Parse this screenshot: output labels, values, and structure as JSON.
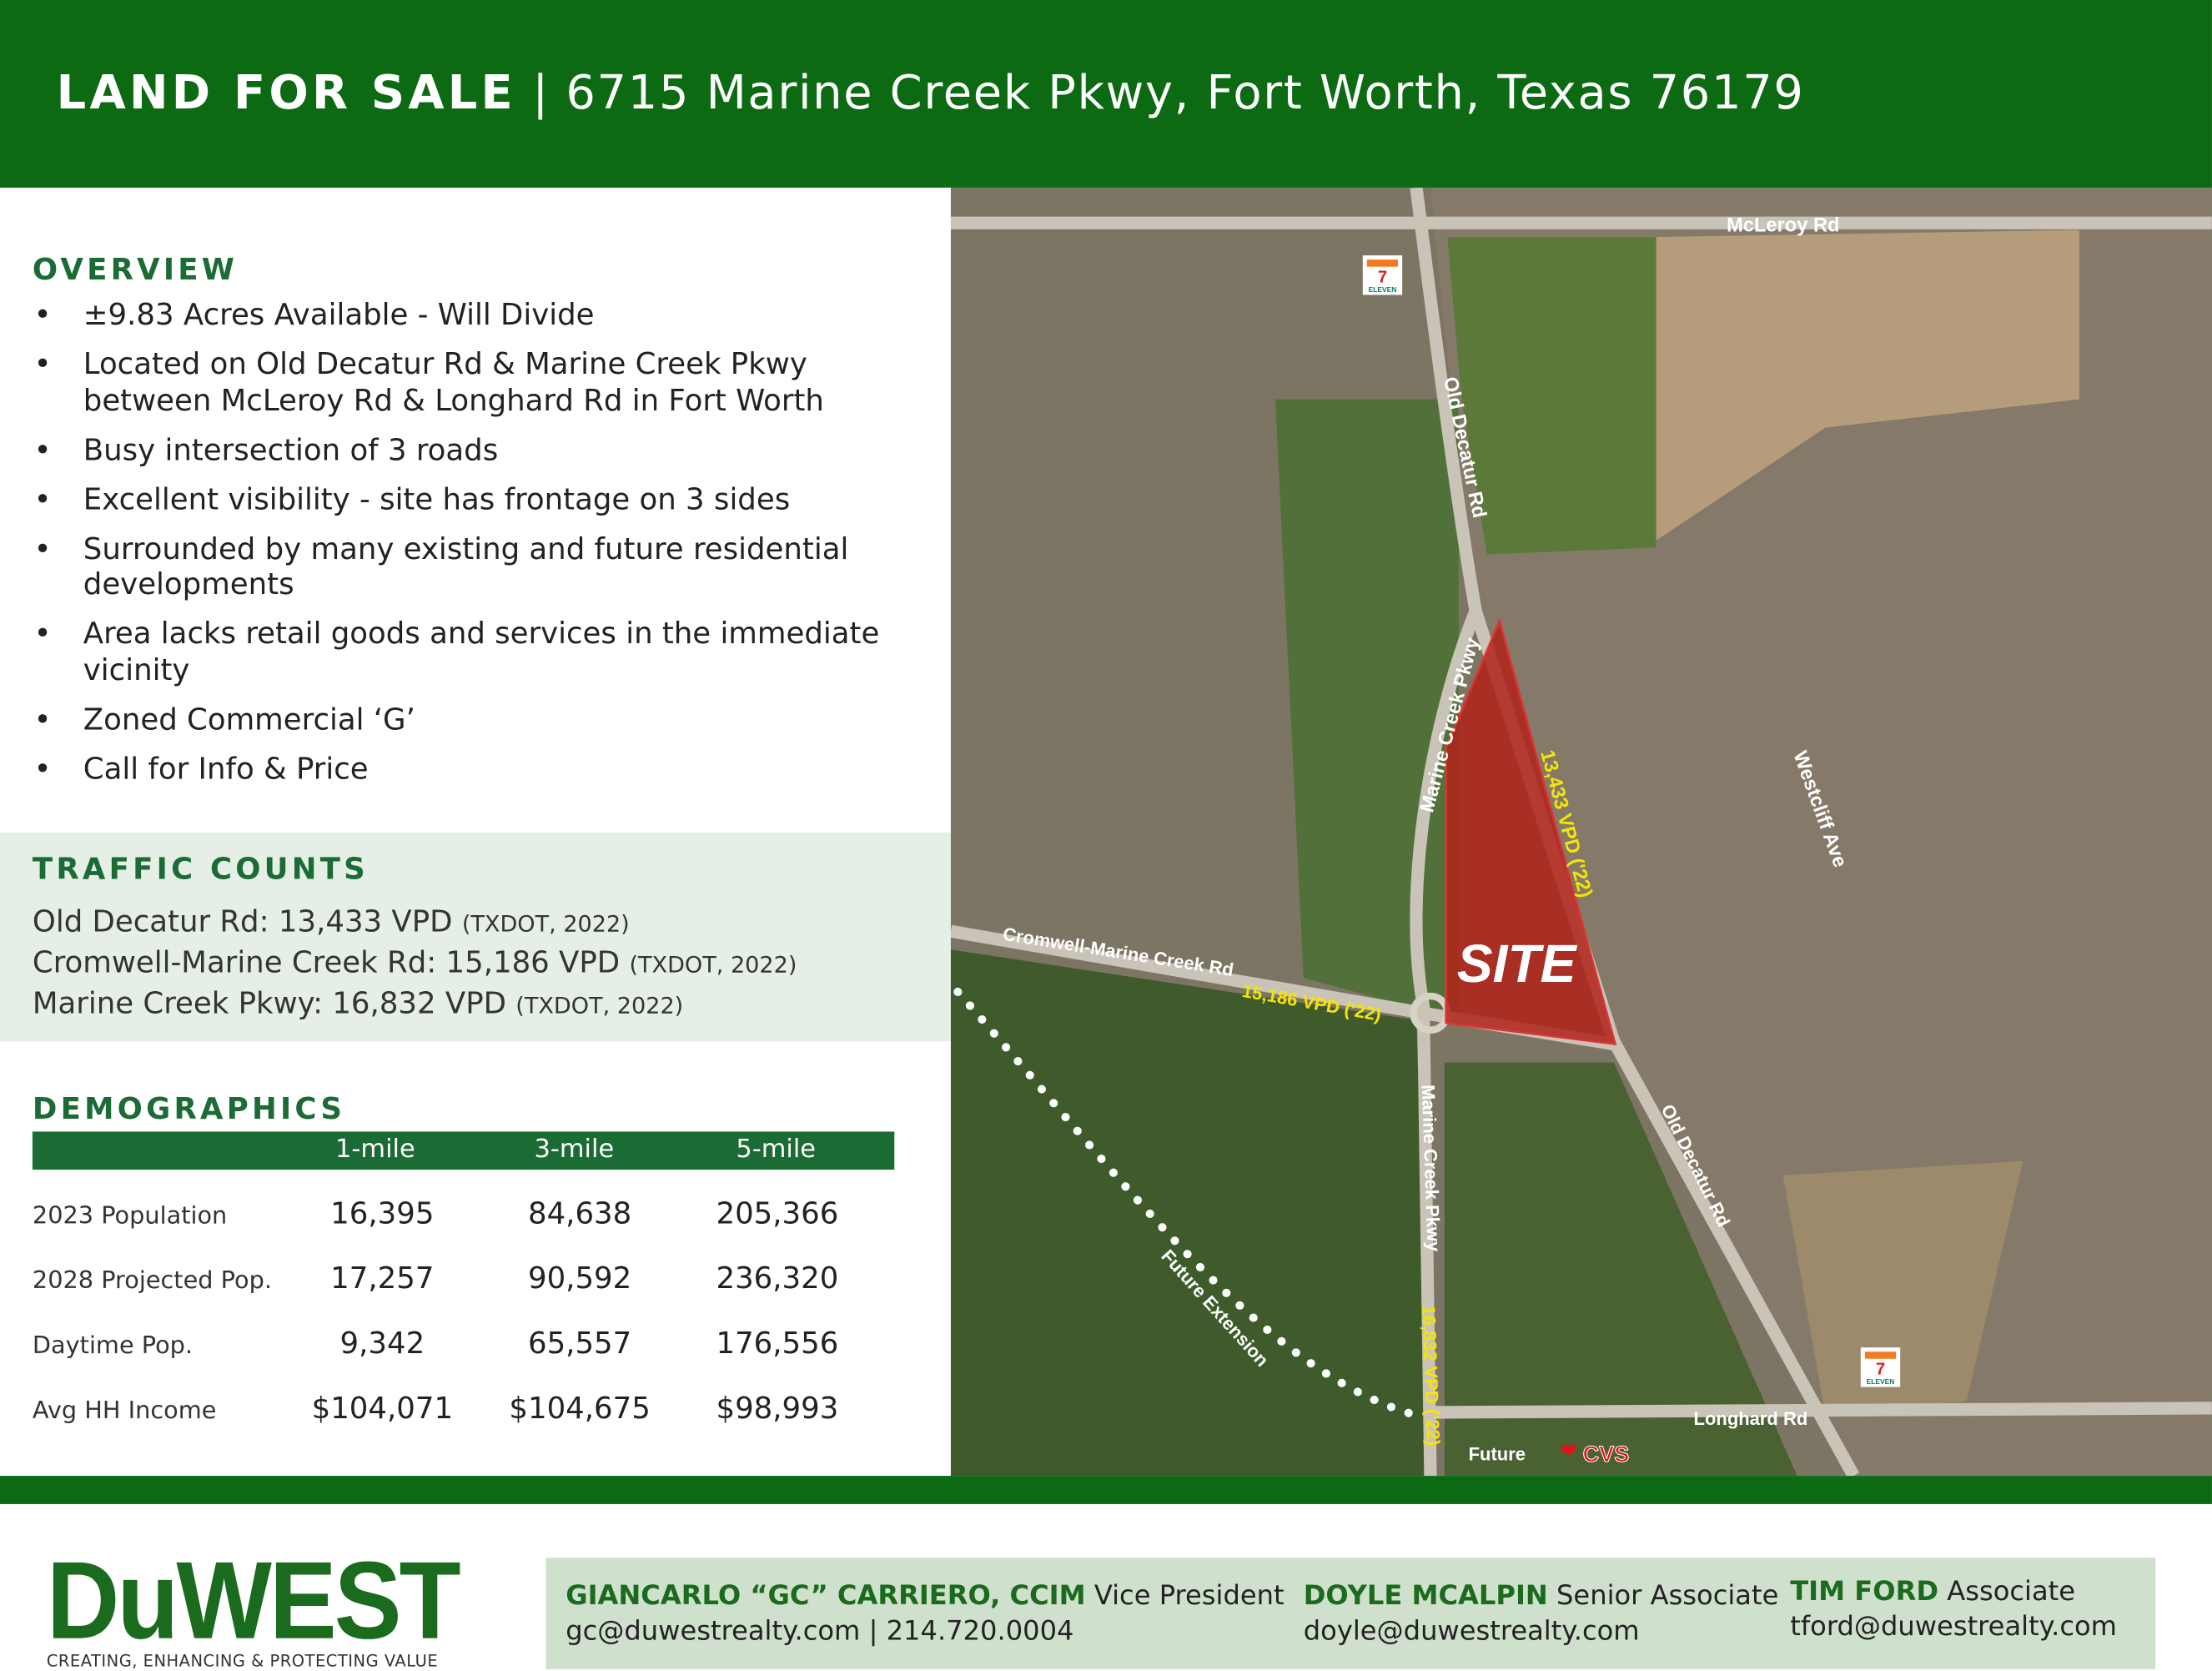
{
  "header": {
    "title_bold": "LAND FOR SALE",
    "separator": "|",
    "address": "6715 Marine Creek Pkwy, Fort Worth, Texas 76179"
  },
  "overview": {
    "heading": "OVERVIEW",
    "bullets": [
      "±9.83 Acres Available - Will Divide",
      "Located on Old Decatur Rd & Marine Creek Pkwy between McLeroy Rd & Longhard Rd in Fort Worth",
      "Busy intersection of 3 roads",
      "Excellent visibility - site has frontage on 3 sides",
      "Surrounded by many existing and future residential developments",
      "Area lacks retail goods and services in the immediate vicinity",
      "Zoned Commercial ‘G’",
      "Call for Info & Price"
    ]
  },
  "traffic": {
    "heading": "TRAFFIC COUNTS",
    "rows": [
      {
        "road": "Old Decatur Rd: 13,433 VPD",
        "source": "(TXDOT, 2022)"
      },
      {
        "road": "Cromwell-Marine Creek Rd: 15,186 VPD",
        "source": "(TXDOT, 2022)"
      },
      {
        "road": "Marine Creek Pkwy: 16,832 VPD",
        "source": "(TXDOT, 2022)"
      }
    ]
  },
  "demographics": {
    "heading": "DEMOGRAPHICS",
    "columns": [
      "1-mile",
      "3-mile",
      "5-mile"
    ],
    "rows": [
      {
        "label": "2023 Population",
        "values": [
          "16,395",
          "84,638",
          "205,366"
        ]
      },
      {
        "label": "2028 Projected Pop.",
        "values": [
          "17,257",
          "90,592",
          "236,320"
        ]
      },
      {
        "label": "Daytime Pop.",
        "values": [
          "9,342",
          "65,557",
          "176,556"
        ]
      },
      {
        "label": "Avg HH Income",
        "values": [
          "$104,071",
          "$104,675",
          "$98,993"
        ]
      }
    ]
  },
  "map": {
    "labels": {
      "mcleroy": "McLeroy Rd",
      "old_decatur_n": "Old Decatur Rd",
      "marine_creek_n": "Marine Creek Pkwy",
      "vpd_old_decatur": "13,433 VPD ('22)",
      "westcliff": "Westcliff Ave",
      "site": "SITE",
      "cromwell": "Cromwell-Marine Creek Rd",
      "vpd_cromwell": "15,186 VPD ('22)",
      "marine_creek_s": "Marine Creek Pkwy",
      "old_decatur_s": "Old Decatur Rd",
      "future_extension": "Future Extension",
      "vpd_marine_creek": "16,832 VPD ('22)",
      "longhard": "Longhard Rd",
      "future": "Future",
      "cvs": "CVS",
      "seven_eleven": "ELEVEN"
    },
    "colors": {
      "site": "#b0231a",
      "vpd_label": "#f5e600"
    }
  },
  "footer": {
    "logo": "DuWEST",
    "tagline": "CREATING, ENHANCING & PROTECTING VALUE",
    "contacts": [
      {
        "name": "GIANCARLO “GC” CARRIERO, CCIM",
        "title": "Vice President",
        "line2": "gc@duwestrealty.com  |  214.720.0004"
      },
      {
        "name": "DOYLE MCALPIN",
        "title": "Senior Associate",
        "line2": "doyle@duwestrealty.com"
      },
      {
        "name": "TIM FORD",
        "title": "Associate",
        "line2": "tford@duwestrealty.com"
      }
    ]
  },
  "colors": {
    "brand_green": "#0b6a12",
    "table_green": "#1b6b35",
    "traffic_bg": "#e5efe5",
    "contact_bg": "#cfe0cc"
  }
}
